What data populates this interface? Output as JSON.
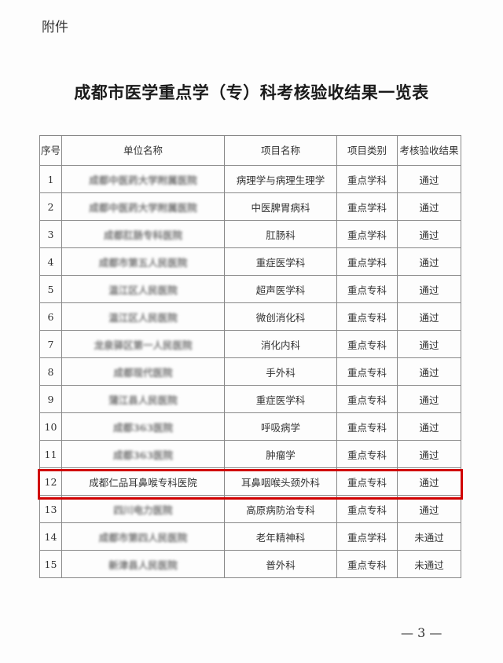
{
  "attachment_label": "附件",
  "title": "成都市医学重点学（专）科考核验收结果一览表",
  "table": {
    "headers": [
      "序号",
      "单位名称",
      "项目名称",
      "项目类别",
      "考核验收结果"
    ],
    "rows": [
      {
        "no": "1",
        "unit": "成都中医药大学附属医院",
        "project": "病理学与病理生理学",
        "category": "重点学科",
        "result": "通过",
        "blurred": true
      },
      {
        "no": "2",
        "unit": "成都中医药大学附属医院",
        "project": "中医脾胃病科",
        "category": "重点学科",
        "result": "通过",
        "blurred": true
      },
      {
        "no": "3",
        "unit": "成都肛肠专科医院",
        "project": "肛肠科",
        "category": "重点学科",
        "result": "通过",
        "blurred": true
      },
      {
        "no": "4",
        "unit": "成都市第五人民医院",
        "project": "重症医学科",
        "category": "重点学科",
        "result": "通过",
        "blurred": true
      },
      {
        "no": "5",
        "unit": "温江区人民医院",
        "project": "超声医学科",
        "category": "重点专科",
        "result": "通过",
        "blurred": true
      },
      {
        "no": "6",
        "unit": "温江区人民医院",
        "project": "微创消化科",
        "category": "重点专科",
        "result": "通过",
        "blurred": true
      },
      {
        "no": "7",
        "unit": "龙泉驿区第一人民医院",
        "project": "消化内科",
        "category": "重点专科",
        "result": "通过",
        "blurred": true
      },
      {
        "no": "8",
        "unit": "成都现代医院",
        "project": "手外科",
        "category": "重点专科",
        "result": "通过",
        "blurred": true
      },
      {
        "no": "9",
        "unit": "蒲江县人民医院",
        "project": "重症医学科",
        "category": "重点专科",
        "result": "通过",
        "blurred": true
      },
      {
        "no": "10",
        "unit": "成都363医院",
        "project": "呼吸病学",
        "category": "重点专科",
        "result": "通过",
        "blurred": true
      },
      {
        "no": "11",
        "unit": "成都363医院",
        "project": "肿瘤学",
        "category": "重点专科",
        "result": "通过",
        "blurred": true
      },
      {
        "no": "12",
        "unit": "成都仁品耳鼻喉专科医院",
        "project": "耳鼻咽喉头颈外科",
        "category": "重点专科",
        "result": "通过",
        "blurred": false,
        "highlighted": true
      },
      {
        "no": "13",
        "unit": "四川电力医院",
        "project": "高原病防治专科",
        "category": "重点专科",
        "result": "通过",
        "blurred": true
      },
      {
        "no": "14",
        "unit": "成都市第四人民医院",
        "project": "老年精神科",
        "category": "重点学科",
        "result": "未通过",
        "blurred": true
      },
      {
        "no": "15",
        "unit": "新津县人民医院",
        "project": "普外科",
        "category": "重点专科",
        "result": "未通过",
        "blurred": true
      }
    ]
  },
  "highlight_color": "#d00000",
  "page_number": "— 3 —"
}
